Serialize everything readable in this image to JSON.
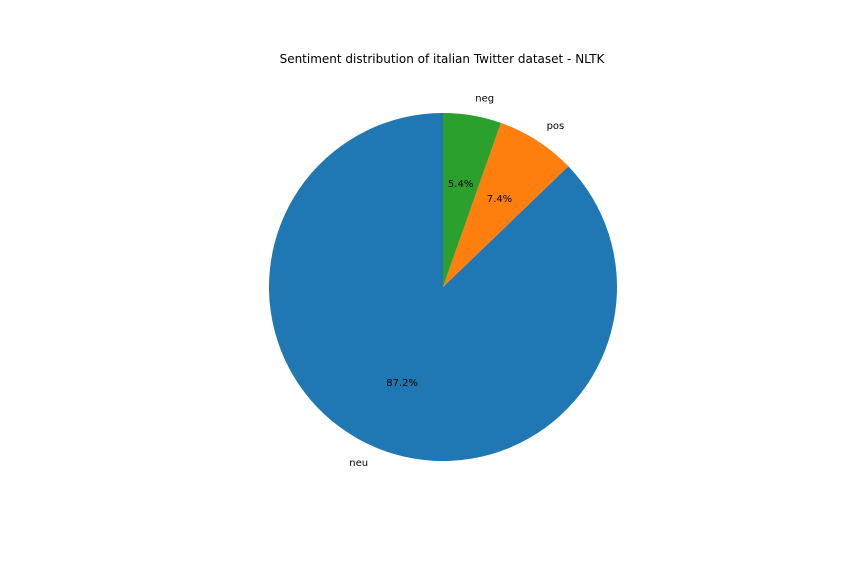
{
  "chart_data": {
    "type": "pie",
    "title": "Sentiment distribution of italian Twitter dataset - NLTK",
    "start_angle_deg": 90,
    "direction": "counterclockwise",
    "slices": [
      {
        "label": "neu",
        "value": 87.2,
        "pct_label": "87.2%",
        "color": "#1f77b4"
      },
      {
        "label": "pos",
        "value": 7.4,
        "pct_label": "7.4%",
        "color": "#ff7f0e"
      },
      {
        "label": "neg",
        "value": 5.4,
        "pct_label": "5.4%",
        "color": "#2ca02c"
      }
    ]
  }
}
